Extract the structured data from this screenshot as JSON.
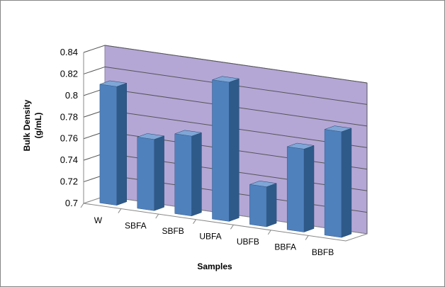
{
  "chart_data": {
    "type": "bar",
    "style": "3d-column",
    "categories": [
      "W",
      "SBFA",
      "SBFB",
      "UBFA",
      "UBFB",
      "BBFA",
      "BBFB"
    ],
    "values": [
      0.81,
      0.766,
      0.774,
      0.829,
      0.737,
      0.777,
      0.798
    ],
    "ylabel_line1": "Bulk Density",
    "ylabel_line2": "(g/mL)",
    "xlabel": "Samples",
    "ylim": [
      0.7,
      0.84
    ],
    "yticks": [
      "0.7",
      "0.72",
      "0.74",
      "0.76",
      "0.78",
      "0.8",
      "0.82",
      "0.84"
    ],
    "grid": true,
    "legend": "none",
    "colors": {
      "bar_front": "#4F81BD",
      "bar_side": "#2E5A8A",
      "bar_top": "#7FA6D6",
      "back_wall": "#B4A7D6",
      "grid": "#555555",
      "frame_border": "#868686"
    }
  }
}
